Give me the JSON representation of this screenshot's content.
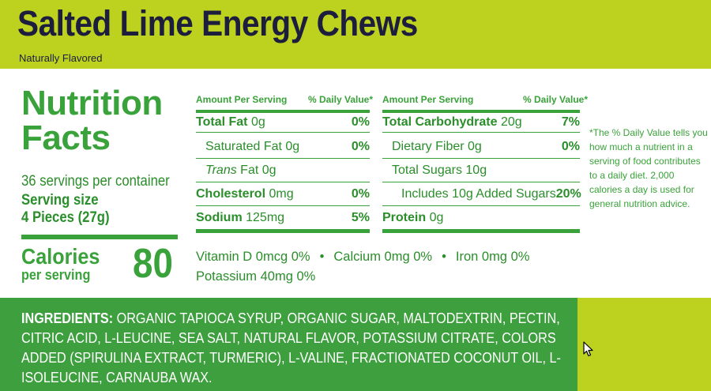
{
  "header": {
    "title": "Salted Lime Energy Chews",
    "subtitle": "Naturally Flavored"
  },
  "nutrition": {
    "heading_line1": "Nutrition",
    "heading_line2": "Facts",
    "servings_per_container": "36 servings per container",
    "serving_size_label": "Serving size",
    "serving_size_value": "4 Pieces (27g)",
    "calories_label": "Calories",
    "calories_per": "per serving",
    "calories_value": "80",
    "left_table": {
      "col_amount": "Amount Per Serving",
      "col_dv": "% Daily Value*",
      "rows": [
        {
          "name": "Total Fat",
          "amount": "0g",
          "dv": "0%"
        },
        {
          "name": "Saturated Fat",
          "amount": "0g",
          "dv": "0%"
        },
        {
          "name": "Trans",
          "name_suffix": "Fat",
          "amount": "0g",
          "dv": ""
        },
        {
          "name": "Cholesterol",
          "amount": "0mg",
          "dv": "0%"
        },
        {
          "name": "Sodium",
          "amount": "125mg",
          "dv": "5%"
        }
      ]
    },
    "right_table": {
      "col_amount": "Amount Per Serving",
      "col_dv": "% Daily Value*",
      "rows": [
        {
          "name": "Total Carbohydrate",
          "amount": "20g",
          "dv": "7%"
        },
        {
          "name": "Dietary Fiber",
          "amount": "0g",
          "dv": "0%"
        },
        {
          "name": "Total Sugars",
          "amount": "10g",
          "dv": ""
        },
        {
          "name": "Includes 10g Added Sugars",
          "amount": "",
          "dv": "20%"
        },
        {
          "name": "Protein",
          "amount": "0g",
          "dv": ""
        }
      ]
    },
    "vitamins": {
      "vitamin_d": "Vitamin D  0mcg 0%",
      "calcium": "Calcium  0mg 0%",
      "iron": "Iron  0mg 0%",
      "potassium": "Potassium  40mg 0%",
      "separator": "•"
    },
    "footnote": "*The % Daily Value tells you how much a nutrient in a serving of food contributes to a daily diet. 2,000 calories a day is used for general nutrition advice."
  },
  "ingredients": {
    "label": "INGREDIENTS:",
    "text": "ORGANIC TAPIOCA SYRUP, ORGANIC SUGAR, MALTODEXTRIN, PECTIN, CITRIC ACID, L-LEUCINE, SEA SALT, NATURAL FLAVOR, POTASSIUM CITRATE, COLORS ADDED (SPIRULINA EXTRACT, TURMERIC), L-VALINE, FRACTIONATED COCONUT OIL, L-ISOLEUCINE, CARNAUBA WAX."
  },
  "colors": {
    "background": "#bcd21f",
    "title": "#1d1d3d",
    "green": "#3aa23a",
    "ingredients_bg": "#3e9f3e"
  },
  "icons": {
    "cursor": "mouse-pointer-icon"
  }
}
